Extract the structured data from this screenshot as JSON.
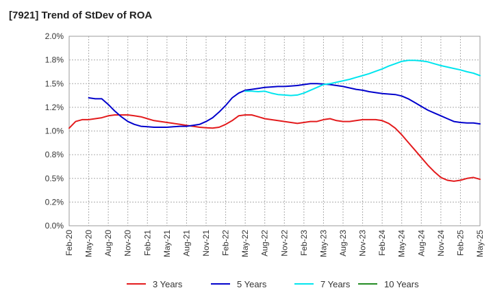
{
  "chart_data": {
    "type": "line",
    "title": "[7921]  Trend of StDev of ROA",
    "xlabel": "",
    "ylabel": "",
    "ylim": [
      0,
      2
    ],
    "y_ticks": [
      "0.0%",
      "0.2%",
      "0.5%",
      "0.8%",
      "1.0%",
      "1.2%",
      "1.5%",
      "1.8%",
      "2.0%"
    ],
    "x_ticks": [
      "Feb-20",
      "May-20",
      "Aug-20",
      "Nov-20",
      "Feb-21",
      "May-21",
      "Aug-21",
      "Nov-21",
      "Feb-22",
      "May-22",
      "Aug-22",
      "Nov-22",
      "Feb-23",
      "May-23",
      "Aug-23",
      "Nov-23",
      "Feb-24",
      "May-24",
      "Aug-24",
      "Nov-24",
      "Feb-25",
      "May-25"
    ],
    "grid": true,
    "legend_position": "bottom",
    "series": [
      {
        "name": "3 Years",
        "color": "#e31a1c",
        "values": [
          [
            0,
            1.03
          ],
          [
            1,
            1.1
          ],
          [
            2,
            1.12
          ],
          [
            3,
            1.12
          ],
          [
            4,
            1.13
          ],
          [
            5,
            1.14
          ],
          [
            6,
            1.16
          ],
          [
            7,
            1.17
          ],
          [
            8,
            1.17
          ],
          [
            9,
            1.17
          ],
          [
            10,
            1.16
          ],
          [
            11,
            1.15
          ],
          [
            12,
            1.13
          ],
          [
            13,
            1.11
          ],
          [
            14,
            1.1
          ],
          [
            15,
            1.09
          ],
          [
            16,
            1.08
          ],
          [
            17,
            1.07
          ],
          [
            18,
            1.06
          ],
          [
            19,
            1.05
          ],
          [
            20,
            1.04
          ],
          [
            21,
            1.035
          ],
          [
            22,
            1.03
          ],
          [
            23,
            1.04
          ],
          [
            24,
            1.07
          ],
          [
            25,
            1.11
          ],
          [
            26,
            1.16
          ],
          [
            27,
            1.17
          ],
          [
            28,
            1.17
          ],
          [
            29,
            1.15
          ],
          [
            30,
            1.13
          ],
          [
            31,
            1.12
          ],
          [
            32,
            1.11
          ],
          [
            33,
            1.1
          ],
          [
            34,
            1.09
          ],
          [
            35,
            1.08
          ],
          [
            36,
            1.09
          ],
          [
            37,
            1.1
          ],
          [
            38,
            1.1
          ],
          [
            39,
            1.12
          ],
          [
            40,
            1.13
          ],
          [
            41,
            1.11
          ],
          [
            42,
            1.1
          ],
          [
            43,
            1.1
          ],
          [
            44,
            1.11
          ],
          [
            45,
            1.12
          ],
          [
            46,
            1.12
          ],
          [
            47,
            1.12
          ],
          [
            48,
            1.11
          ],
          [
            49,
            1.08
          ],
          [
            50,
            1.03
          ],
          [
            51,
            0.96
          ],
          [
            52,
            0.88
          ],
          [
            53,
            0.8
          ],
          [
            54,
            0.72
          ],
          [
            55,
            0.64
          ],
          [
            56,
            0.57
          ],
          [
            57,
            0.51
          ],
          [
            58,
            0.48
          ],
          [
            59,
            0.47
          ],
          [
            60,
            0.48
          ],
          [
            61,
            0.5
          ],
          [
            62,
            0.51
          ],
          [
            63,
            0.49
          ]
        ]
      },
      {
        "name": "5 Years",
        "color": "#0000cc",
        "values": [
          [
            3,
            1.35
          ],
          [
            4,
            1.34
          ],
          [
            5,
            1.34
          ],
          [
            6,
            1.28
          ],
          [
            7,
            1.21
          ],
          [
            8,
            1.15
          ],
          [
            9,
            1.1
          ],
          [
            10,
            1.07
          ],
          [
            11,
            1.05
          ],
          [
            12,
            1.045
          ],
          [
            13,
            1.04
          ],
          [
            14,
            1.04
          ],
          [
            15,
            1.04
          ],
          [
            16,
            1.045
          ],
          [
            17,
            1.05
          ],
          [
            18,
            1.05
          ],
          [
            19,
            1.06
          ],
          [
            20,
            1.07
          ],
          [
            21,
            1.1
          ],
          [
            22,
            1.14
          ],
          [
            23,
            1.2
          ],
          [
            24,
            1.27
          ],
          [
            25,
            1.35
          ],
          [
            26,
            1.4
          ],
          [
            27,
            1.43
          ],
          [
            28,
            1.44
          ],
          [
            29,
            1.45
          ],
          [
            30,
            1.46
          ],
          [
            31,
            1.465
          ],
          [
            32,
            1.47
          ],
          [
            33,
            1.47
          ],
          [
            34,
            1.475
          ],
          [
            35,
            1.48
          ],
          [
            36,
            1.49
          ],
          [
            37,
            1.5
          ],
          [
            38,
            1.5
          ],
          [
            39,
            1.495
          ],
          [
            40,
            1.49
          ],
          [
            41,
            1.48
          ],
          [
            42,
            1.47
          ],
          [
            43,
            1.455
          ],
          [
            44,
            1.44
          ],
          [
            45,
            1.43
          ],
          [
            46,
            1.415
          ],
          [
            47,
            1.405
          ],
          [
            48,
            1.395
          ],
          [
            49,
            1.39
          ],
          [
            50,
            1.385
          ],
          [
            51,
            1.37
          ],
          [
            52,
            1.34
          ],
          [
            53,
            1.3
          ],
          [
            54,
            1.26
          ],
          [
            55,
            1.22
          ],
          [
            56,
            1.19
          ],
          [
            57,
            1.16
          ],
          [
            58,
            1.13
          ],
          [
            59,
            1.1
          ],
          [
            60,
            1.09
          ],
          [
            61,
            1.085
          ],
          [
            62,
            1.085
          ],
          [
            63,
            1.075
          ]
        ]
      },
      {
        "name": "7 Years",
        "color": "#00e5ee",
        "values": [
          [
            27,
            1.42
          ],
          [
            28,
            1.42
          ],
          [
            29,
            1.415
          ],
          [
            30,
            1.42
          ],
          [
            31,
            1.4
          ],
          [
            32,
            1.385
          ],
          [
            33,
            1.38
          ],
          [
            34,
            1.375
          ],
          [
            35,
            1.38
          ],
          [
            36,
            1.4
          ],
          [
            37,
            1.43
          ],
          [
            38,
            1.46
          ],
          [
            39,
            1.49
          ],
          [
            40,
            1.5
          ],
          [
            41,
            1.515
          ],
          [
            42,
            1.53
          ],
          [
            43,
            1.545
          ],
          [
            44,
            1.565
          ],
          [
            45,
            1.585
          ],
          [
            46,
            1.605
          ],
          [
            47,
            1.63
          ],
          [
            48,
            1.655
          ],
          [
            49,
            1.685
          ],
          [
            50,
            1.71
          ],
          [
            51,
            1.735
          ],
          [
            52,
            1.745
          ],
          [
            53,
            1.745
          ],
          [
            54,
            1.74
          ],
          [
            55,
            1.73
          ],
          [
            56,
            1.71
          ],
          [
            57,
            1.69
          ],
          [
            58,
            1.675
          ],
          [
            59,
            1.66
          ],
          [
            60,
            1.645
          ],
          [
            61,
            1.625
          ],
          [
            62,
            1.61
          ],
          [
            63,
            1.585
          ]
        ]
      },
      {
        "name": "10 Years",
        "color": "#228b22",
        "values": []
      }
    ]
  }
}
